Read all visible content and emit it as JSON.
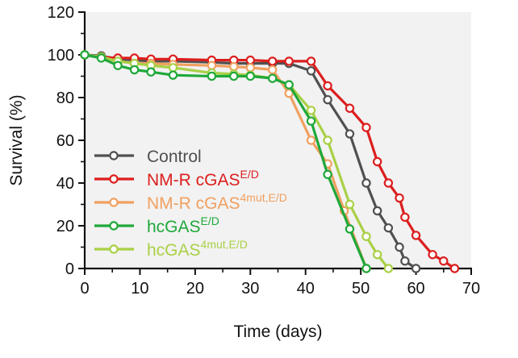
{
  "chart_data": {
    "type": "line",
    "title": "",
    "xlabel": "Time (days)",
    "ylabel": "Survival (%)",
    "xlim": [
      0,
      70
    ],
    "ylim": [
      0,
      120
    ],
    "xticks": [
      0,
      10,
      20,
      30,
      40,
      50,
      60,
      70
    ],
    "yticks": [
      0,
      20,
      40,
      60,
      80,
      100,
      120
    ],
    "background": "#f2f2f2",
    "legend_position": "center-left",
    "series": [
      {
        "name": "Control",
        "label_main": "Control",
        "label_sup": "",
        "color": "#505050",
        "points": [
          [
            0,
            100
          ],
          [
            3,
            99.5
          ],
          [
            6,
            98
          ],
          [
            9,
            97.5
          ],
          [
            12,
            97
          ],
          [
            16,
            97
          ],
          [
            23,
            96.5
          ],
          [
            27,
            96
          ],
          [
            30,
            96
          ],
          [
            34,
            96
          ],
          [
            37,
            96
          ],
          [
            41,
            92.5
          ],
          [
            44,
            79
          ],
          [
            48,
            63
          ],
          [
            51,
            40
          ],
          [
            53,
            27
          ],
          [
            55,
            19
          ],
          [
            57,
            10
          ],
          [
            58,
            3.5
          ],
          [
            60,
            0
          ]
        ]
      },
      {
        "name": "NM-R cGAS E/D",
        "label_main": "NM-R cGAS",
        "label_sup": "E/D",
        "color": "#dc1e1e",
        "points": [
          [
            0,
            100
          ],
          [
            3,
            99
          ],
          [
            6,
            98.5
          ],
          [
            9,
            98.5
          ],
          [
            12,
            98
          ],
          [
            16,
            98
          ],
          [
            23,
            97.5
          ],
          [
            27,
            97.5
          ],
          [
            30,
            97.5
          ],
          [
            34,
            97
          ],
          [
            37,
            97
          ],
          [
            41,
            97
          ],
          [
            44,
            85.5
          ],
          [
            48,
            75
          ],
          [
            51,
            66
          ],
          [
            53,
            50
          ],
          [
            55,
            40
          ],
          [
            57,
            33
          ],
          [
            58,
            24
          ],
          [
            60,
            15.5
          ],
          [
            63,
            6.5
          ],
          [
            65,
            3.5
          ],
          [
            67,
            0
          ]
        ]
      },
      {
        "name": "NM-R cGAS 4mut,E/D",
        "label_main": "NM-R cGAS",
        "label_sup": "4mut,E/D",
        "color": "#f0a060",
        "points": [
          [
            0,
            100
          ],
          [
            3,
            99
          ],
          [
            6,
            97
          ],
          [
            9,
            96
          ],
          [
            12,
            96
          ],
          [
            16,
            95.5
          ],
          [
            23,
            95
          ],
          [
            27,
            94.5
          ],
          [
            30,
            94
          ],
          [
            34,
            93
          ],
          [
            37,
            82
          ],
          [
            41,
            60
          ],
          [
            44,
            49
          ],
          [
            47,
            27
          ],
          [
            51,
            0
          ]
        ]
      },
      {
        "name": "hcGAS E/D",
        "label_main": "hcGAS",
        "label_sup": "E/D",
        "color": "#1fa83a",
        "points": [
          [
            0,
            100
          ],
          [
            3,
            98.5
          ],
          [
            6,
            95
          ],
          [
            9,
            93
          ],
          [
            12,
            92
          ],
          [
            16,
            90.5
          ],
          [
            23,
            90
          ],
          [
            27,
            90
          ],
          [
            30,
            90
          ],
          [
            34,
            89
          ],
          [
            37,
            86
          ],
          [
            41,
            69
          ],
          [
            44,
            44
          ],
          [
            48,
            18.5
          ],
          [
            51,
            0
          ]
        ]
      },
      {
        "name": "hcGAS 4mut,E/D",
        "label_main": "hcGAS",
        "label_sup": "4mut,E/D",
        "color": "#a9d046",
        "points": [
          [
            0,
            100
          ],
          [
            3,
            99
          ],
          [
            6,
            97
          ],
          [
            9,
            96
          ],
          [
            12,
            95
          ],
          [
            16,
            94
          ],
          [
            23,
            91.5
          ],
          [
            27,
            91
          ],
          [
            30,
            90.5
          ],
          [
            34,
            89
          ],
          [
            37,
            86
          ],
          [
            41,
            74
          ],
          [
            44,
            60
          ],
          [
            48,
            30
          ],
          [
            51,
            15
          ],
          [
            53,
            6.5
          ],
          [
            55,
            0
          ]
        ]
      }
    ]
  }
}
